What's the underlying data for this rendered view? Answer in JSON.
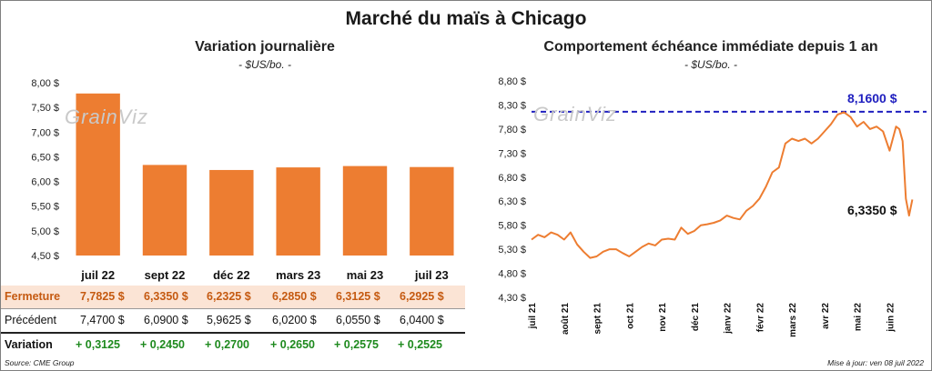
{
  "title": "Marché du maïs à Chicago",
  "left_chart": {
    "title": "Variation  journalière",
    "subtitle": "- $US/bo. -",
    "watermark": "GrainViz"
  },
  "right_chart": {
    "title": "Comportement  échéance immédiate depuis 1 an",
    "subtitle": "- $US/bo. -",
    "watermark": "GrainViz",
    "max_label": "8,1600 $",
    "last_label": "6,3350 $"
  },
  "table": {
    "rows": [
      {
        "label": "Fermeture",
        "values": [
          "7,7825  $",
          "6,3350  $",
          "6,2325  $",
          "6,2850  $",
          "6,3125  $",
          "6,2925  $"
        ]
      },
      {
        "label": "Précédent",
        "values": [
          "7,4700  $",
          "6,0900  $",
          "5,9625  $",
          "6,0200  $",
          "6,0550  $",
          "6,0400  $"
        ]
      },
      {
        "label": "Variation",
        "values": [
          "+ 0,3125",
          "+ 0,2450",
          "+ 0,2700",
          "+ 0,2650",
          "+ 0,2575",
          "+ 0,2525"
        ]
      }
    ]
  },
  "footer": {
    "source": "Source: CME Group",
    "update": "Mise à jour: ven 08 juil 2022"
  },
  "colors": {
    "bar": "#ed7d31",
    "line": "#ed7d31",
    "max_line": "#1f1fbf",
    "close_row_bg": "#fbe4d5",
    "close_text": "#c55a11",
    "positive": "#1e8a1e"
  },
  "chart_data": [
    {
      "type": "bar",
      "title": "Variation  journalière",
      "subtitle": "- $US/bo. -",
      "categories": [
        "juil 22",
        "sept 22",
        "déc 22",
        "mars 23",
        "mai 23",
        "juil 23"
      ],
      "values": [
        7.7825,
        6.335,
        6.2325,
        6.285,
        6.3125,
        6.2925
      ],
      "ylim": [
        4.5,
        8.0
      ],
      "yticks": [
        "4,50 $",
        "5,00 $",
        "5,50 $",
        "6,00 $",
        "6,50 $",
        "7,00 $",
        "7,50 $",
        "8,00 $"
      ],
      "ytick_values": [
        4.5,
        5.0,
        5.5,
        6.0,
        6.5,
        7.0,
        7.5,
        8.0
      ]
    },
    {
      "type": "line",
      "title": "Comportement  échéance immédiate depuis 1 an",
      "subtitle": "- $US/bo. -",
      "ylim": [
        4.3,
        8.8
      ],
      "yticks": [
        "4,30 $",
        "4,80 $",
        "5,30 $",
        "5,80 $",
        "6,30 $",
        "6,80 $",
        "7,30 $",
        "7,80 $",
        "8,30 $",
        "8,80 $"
      ],
      "ytick_values": [
        4.3,
        4.8,
        5.3,
        5.8,
        6.3,
        6.8,
        7.3,
        7.8,
        8.3,
        8.8
      ],
      "xticks": [
        "juil 21",
        "août 21",
        "sept 21",
        "oct 21",
        "nov 21",
        "déc 21",
        "janv 22",
        "févr 22",
        "mars 22",
        "avr 22",
        "mai 22",
        "juin 22"
      ],
      "reference_line": {
        "label": "8,1600 $",
        "value": 8.16
      },
      "last_value_label": "6,3350 $",
      "series": [
        {
          "x": [
            0,
            0.2,
            0.4,
            0.6,
            0.8,
            1.0,
            1.2,
            1.4,
            1.6,
            1.8,
            2.0,
            2.2,
            2.4,
            2.6,
            2.8,
            3.0,
            3.2,
            3.4,
            3.6,
            3.8,
            4.0,
            4.2,
            4.4,
            4.6,
            4.8,
            5.0,
            5.2,
            5.4,
            5.6,
            5.8,
            6.0,
            6.2,
            6.4,
            6.6,
            6.8,
            7.0,
            7.2,
            7.4,
            7.6,
            7.8,
            8.0,
            8.2,
            8.4,
            8.6,
            8.8,
            9.0,
            9.2,
            9.4,
            9.6,
            9.8,
            10.0,
            10.2,
            10.4,
            10.6,
            10.8,
            11.0,
            11.2,
            11.3,
            11.4,
            11.5,
            11.6,
            11.7
          ],
          "y": [
            5.5,
            5.6,
            5.55,
            5.65,
            5.6,
            5.5,
            5.65,
            5.4,
            5.25,
            5.12,
            5.15,
            5.25,
            5.3,
            5.3,
            5.22,
            5.15,
            5.25,
            5.35,
            5.42,
            5.38,
            5.5,
            5.52,
            5.5,
            5.75,
            5.62,
            5.68,
            5.8,
            5.82,
            5.85,
            5.9,
            6.0,
            5.95,
            5.92,
            6.1,
            6.2,
            6.35,
            6.6,
            6.9,
            7.0,
            7.5,
            7.6,
            7.55,
            7.6,
            7.5,
            7.6,
            7.75,
            7.9,
            8.1,
            8.15,
            8.05,
            7.85,
            7.95,
            7.8,
            7.85,
            7.75,
            7.35,
            7.85,
            7.8,
            7.55,
            6.35,
            6.0,
            6.335
          ]
        }
      ]
    }
  ]
}
